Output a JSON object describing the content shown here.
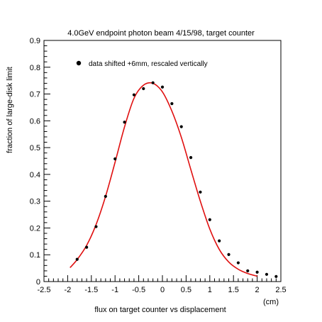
{
  "chart_data": {
    "type": "scatter",
    "title": "4.0GeV endpoint photon beam 4/15/98, target counter",
    "xlabel": "flux on target counter vs displacement",
    "xunit": "(cm)",
    "ylabel": "fraction of large-disk limit",
    "xlim": [
      -2.5,
      2.5
    ],
    "ylim": [
      0,
      0.9
    ],
    "x_ticks": [
      -2.5,
      -2,
      -1.5,
      -1,
      -0.5,
      0,
      0.5,
      1,
      1.5,
      2,
      2.5
    ],
    "x_tick_labels": [
      "-2.5",
      "-2",
      "-1.5",
      "-1",
      "-0.5",
      "0",
      "0.5",
      "1",
      "1.5",
      "2",
      "2.5"
    ],
    "y_ticks": [
      0,
      0.1,
      0.2,
      0.3,
      0.4,
      0.5,
      0.6,
      0.7,
      0.8,
      0.9
    ],
    "y_tick_labels": [
      "0",
      "0.1",
      "0.2",
      "0.3",
      "0.4",
      "0.5",
      "0.6",
      "0.7",
      "0.8",
      "0.9"
    ],
    "grid": false,
    "legend": {
      "entry": "data shifted +6mm, rescaled vertically",
      "placement": "top-left"
    },
    "series": [
      {
        "name": "data shifted +6mm, rescaled vertically",
        "kind": "points",
        "color": "#000000",
        "x": [
          -1.8,
          -1.6,
          -1.4,
          -1.2,
          -1.0,
          -0.8,
          -0.6,
          -0.4,
          -0.2,
          0.0,
          0.2,
          0.4,
          0.6,
          0.8,
          1.0,
          1.2,
          1.4,
          1.6,
          1.8,
          2.0,
          2.2,
          2.4
        ],
        "y": [
          0.083,
          0.128,
          0.205,
          0.318,
          0.458,
          0.595,
          0.697,
          0.72,
          0.742,
          0.726,
          0.664,
          0.578,
          0.463,
          0.334,
          0.231,
          0.152,
          0.101,
          0.07,
          0.04,
          0.035,
          0.027,
          0.019
        ]
      },
      {
        "kind": "line",
        "color": "#e01010",
        "x": [
          -1.95,
          -1.8,
          -1.6,
          -1.4,
          -1.2,
          -1.0,
          -0.8,
          -0.6,
          -0.4,
          -0.2,
          0.0,
          0.2,
          0.4,
          0.6,
          0.8,
          1.0,
          1.2,
          1.4,
          1.6,
          1.8,
          2.0
        ],
        "y": [
          0.052,
          0.082,
          0.135,
          0.213,
          0.318,
          0.445,
          0.577,
          0.684,
          0.733,
          0.74,
          0.708,
          0.636,
          0.538,
          0.418,
          0.3,
          0.196,
          0.12,
          0.073,
          0.046,
          0.03,
          0.02
        ]
      }
    ]
  }
}
